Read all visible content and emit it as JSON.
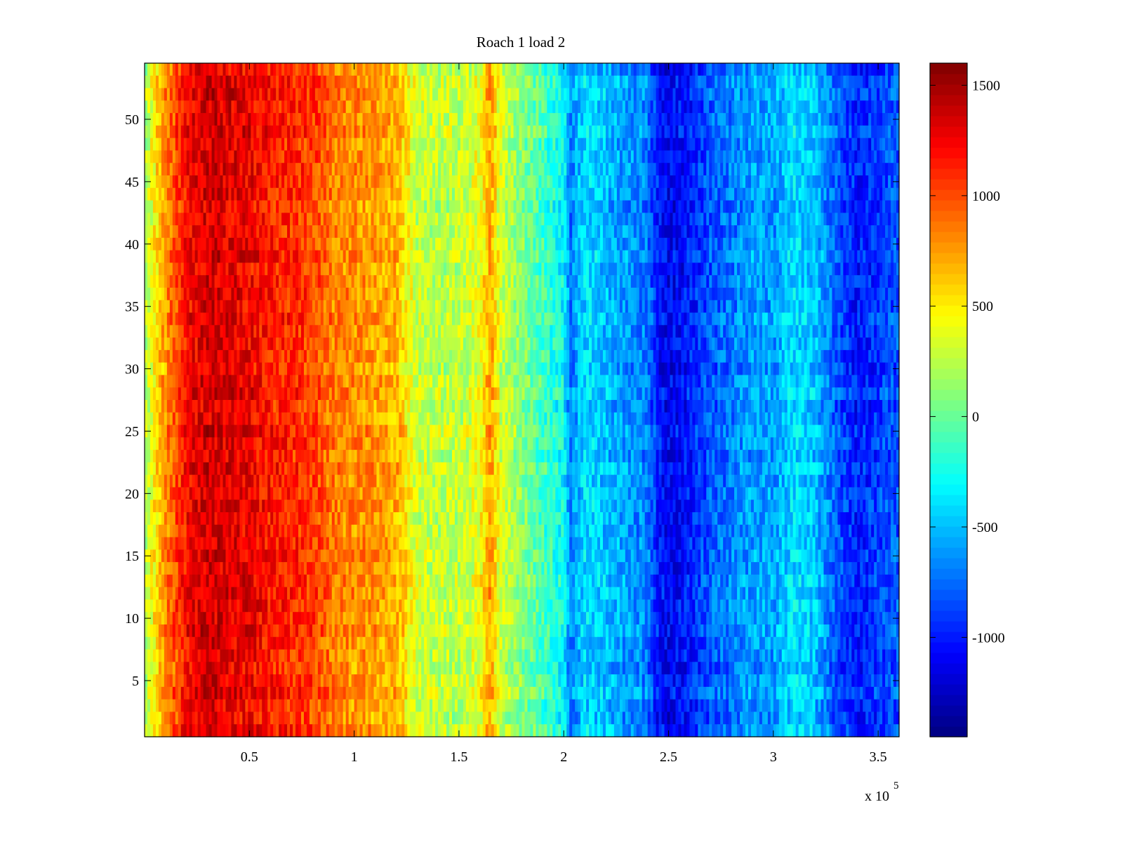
{
  "chart_data": {
    "type": "heatmap",
    "title": "Roach 1 load 2",
    "xlabel": "",
    "ylabel": "",
    "x_exponent_label": {
      "base": "x 10",
      "exponent": "5"
    },
    "xlim": [
      0,
      3.6
    ],
    "ylim": [
      0.5,
      54.5
    ],
    "x_ticks": [
      0.5,
      1,
      1.5,
      2,
      2.5,
      3,
      3.5
    ],
    "x_tick_labels": [
      "0.5",
      "1",
      "1.5",
      "2",
      "2.5",
      "3",
      "3.5"
    ],
    "y_ticks": [
      5,
      10,
      15,
      20,
      25,
      30,
      35,
      40,
      45,
      50
    ],
    "y_tick_labels": [
      "5",
      "10",
      "15",
      "20",
      "25",
      "30",
      "35",
      "40",
      "45",
      "50"
    ],
    "rows": 54,
    "colormap": "jet",
    "colorbar": {
      "clim": [
        -1450,
        1600
      ],
      "ticks": [
        1500,
        1000,
        500,
        0,
        -500,
        -1000
      ],
      "tick_labels": [
        "1500",
        "1000",
        "500",
        "0",
        "-500",
        "-1000"
      ]
    },
    "column_profile": {
      "x": [
        0.0,
        0.1,
        0.2,
        0.3,
        0.4,
        0.5,
        0.6,
        0.7,
        0.8,
        0.85,
        0.9,
        1.0,
        1.1,
        1.2,
        1.25,
        1.3,
        1.4,
        1.5,
        1.6,
        1.65,
        1.7,
        1.8,
        1.9,
        2.0,
        2.03,
        2.1,
        2.2,
        2.3,
        2.4,
        2.45,
        2.5,
        2.6,
        2.7,
        2.8,
        2.9,
        3.0,
        3.1,
        3.2,
        3.3,
        3.4,
        3.5,
        3.6
      ],
      "value": [
        200,
        800,
        1200,
        1350,
        1300,
        1250,
        1150,
        1100,
        1050,
        950,
        850,
        800,
        750,
        700,
        500,
        300,
        250,
        250,
        400,
        750,
        300,
        100,
        -100,
        -300,
        -700,
        -400,
        -500,
        -600,
        -700,
        -1000,
        -1100,
        -1000,
        -800,
        -700,
        -600,
        -600,
        -400,
        -500,
        -800,
        -1000,
        -900,
        -800
      ]
    }
  }
}
